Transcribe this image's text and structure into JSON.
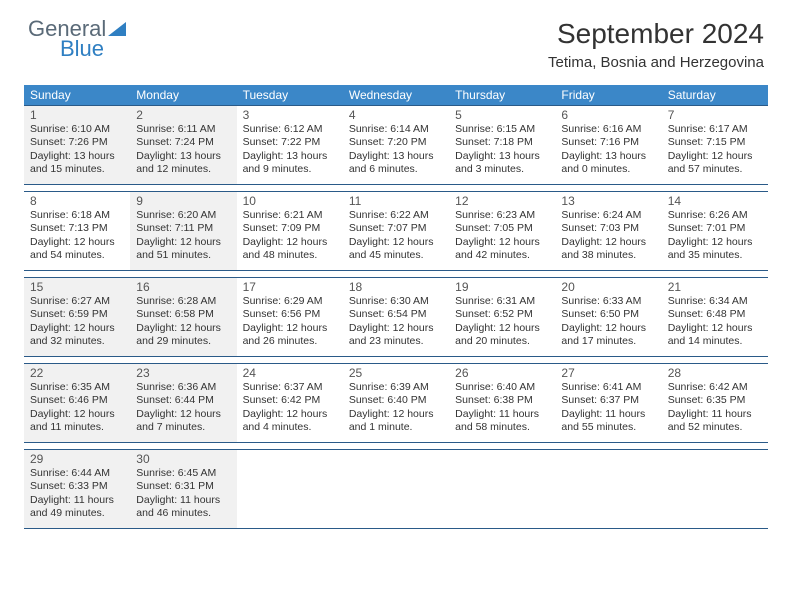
{
  "logo": {
    "text1": "General",
    "text2": "Blue"
  },
  "title": "September 2024",
  "location": "Tetima, Bosnia and Herzegovina",
  "colors": {
    "header_bg": "#3b87c8",
    "border": "#2a5a88",
    "shade": "#f1f1f1",
    "text": "#333333",
    "logo_gray": "#5a6a78",
    "logo_blue": "#2f7fc2"
  },
  "weekdays": [
    "Sunday",
    "Monday",
    "Tuesday",
    "Wednesday",
    "Thursday",
    "Friday",
    "Saturday"
  ],
  "weeks": [
    [
      {
        "n": "1",
        "shaded": true,
        "sr": "Sunrise: 6:10 AM",
        "ss": "Sunset: 7:26 PM",
        "d1": "Daylight: 13 hours",
        "d2": "and 15 minutes."
      },
      {
        "n": "2",
        "shaded": true,
        "sr": "Sunrise: 6:11 AM",
        "ss": "Sunset: 7:24 PM",
        "d1": "Daylight: 13 hours",
        "d2": "and 12 minutes."
      },
      {
        "n": "3",
        "shaded": false,
        "sr": "Sunrise: 6:12 AM",
        "ss": "Sunset: 7:22 PM",
        "d1": "Daylight: 13 hours",
        "d2": "and 9 minutes."
      },
      {
        "n": "4",
        "shaded": false,
        "sr": "Sunrise: 6:14 AM",
        "ss": "Sunset: 7:20 PM",
        "d1": "Daylight: 13 hours",
        "d2": "and 6 minutes."
      },
      {
        "n": "5",
        "shaded": false,
        "sr": "Sunrise: 6:15 AM",
        "ss": "Sunset: 7:18 PM",
        "d1": "Daylight: 13 hours",
        "d2": "and 3 minutes."
      },
      {
        "n": "6",
        "shaded": false,
        "sr": "Sunrise: 6:16 AM",
        "ss": "Sunset: 7:16 PM",
        "d1": "Daylight: 13 hours",
        "d2": "and 0 minutes."
      },
      {
        "n": "7",
        "shaded": false,
        "sr": "Sunrise: 6:17 AM",
        "ss": "Sunset: 7:15 PM",
        "d1": "Daylight: 12 hours",
        "d2": "and 57 minutes."
      }
    ],
    [
      {
        "n": "8",
        "shaded": false,
        "sr": "Sunrise: 6:18 AM",
        "ss": "Sunset: 7:13 PM",
        "d1": "Daylight: 12 hours",
        "d2": "and 54 minutes."
      },
      {
        "n": "9",
        "shaded": true,
        "sr": "Sunrise: 6:20 AM",
        "ss": "Sunset: 7:11 PM",
        "d1": "Daylight: 12 hours",
        "d2": "and 51 minutes."
      },
      {
        "n": "10",
        "shaded": false,
        "sr": "Sunrise: 6:21 AM",
        "ss": "Sunset: 7:09 PM",
        "d1": "Daylight: 12 hours",
        "d2": "and 48 minutes."
      },
      {
        "n": "11",
        "shaded": false,
        "sr": "Sunrise: 6:22 AM",
        "ss": "Sunset: 7:07 PM",
        "d1": "Daylight: 12 hours",
        "d2": "and 45 minutes."
      },
      {
        "n": "12",
        "shaded": false,
        "sr": "Sunrise: 6:23 AM",
        "ss": "Sunset: 7:05 PM",
        "d1": "Daylight: 12 hours",
        "d2": "and 42 minutes."
      },
      {
        "n": "13",
        "shaded": false,
        "sr": "Sunrise: 6:24 AM",
        "ss": "Sunset: 7:03 PM",
        "d1": "Daylight: 12 hours",
        "d2": "and 38 minutes."
      },
      {
        "n": "14",
        "shaded": false,
        "sr": "Sunrise: 6:26 AM",
        "ss": "Sunset: 7:01 PM",
        "d1": "Daylight: 12 hours",
        "d2": "and 35 minutes."
      }
    ],
    [
      {
        "n": "15",
        "shaded": true,
        "sr": "Sunrise: 6:27 AM",
        "ss": "Sunset: 6:59 PM",
        "d1": "Daylight: 12 hours",
        "d2": "and 32 minutes."
      },
      {
        "n": "16",
        "shaded": true,
        "sr": "Sunrise: 6:28 AM",
        "ss": "Sunset: 6:58 PM",
        "d1": "Daylight: 12 hours",
        "d2": "and 29 minutes."
      },
      {
        "n": "17",
        "shaded": false,
        "sr": "Sunrise: 6:29 AM",
        "ss": "Sunset: 6:56 PM",
        "d1": "Daylight: 12 hours",
        "d2": "and 26 minutes."
      },
      {
        "n": "18",
        "shaded": false,
        "sr": "Sunrise: 6:30 AM",
        "ss": "Sunset: 6:54 PM",
        "d1": "Daylight: 12 hours",
        "d2": "and 23 minutes."
      },
      {
        "n": "19",
        "shaded": false,
        "sr": "Sunrise: 6:31 AM",
        "ss": "Sunset: 6:52 PM",
        "d1": "Daylight: 12 hours",
        "d2": "and 20 minutes."
      },
      {
        "n": "20",
        "shaded": false,
        "sr": "Sunrise: 6:33 AM",
        "ss": "Sunset: 6:50 PM",
        "d1": "Daylight: 12 hours",
        "d2": "and 17 minutes."
      },
      {
        "n": "21",
        "shaded": false,
        "sr": "Sunrise: 6:34 AM",
        "ss": "Sunset: 6:48 PM",
        "d1": "Daylight: 12 hours",
        "d2": "and 14 minutes."
      }
    ],
    [
      {
        "n": "22",
        "shaded": true,
        "sr": "Sunrise: 6:35 AM",
        "ss": "Sunset: 6:46 PM",
        "d1": "Daylight: 12 hours",
        "d2": "and 11 minutes."
      },
      {
        "n": "23",
        "shaded": true,
        "sr": "Sunrise: 6:36 AM",
        "ss": "Sunset: 6:44 PM",
        "d1": "Daylight: 12 hours",
        "d2": "and 7 minutes."
      },
      {
        "n": "24",
        "shaded": false,
        "sr": "Sunrise: 6:37 AM",
        "ss": "Sunset: 6:42 PM",
        "d1": "Daylight: 12 hours",
        "d2": "and 4 minutes."
      },
      {
        "n": "25",
        "shaded": false,
        "sr": "Sunrise: 6:39 AM",
        "ss": "Sunset: 6:40 PM",
        "d1": "Daylight: 12 hours",
        "d2": "and 1 minute."
      },
      {
        "n": "26",
        "shaded": false,
        "sr": "Sunrise: 6:40 AM",
        "ss": "Sunset: 6:38 PM",
        "d1": "Daylight: 11 hours",
        "d2": "and 58 minutes."
      },
      {
        "n": "27",
        "shaded": false,
        "sr": "Sunrise: 6:41 AM",
        "ss": "Sunset: 6:37 PM",
        "d1": "Daylight: 11 hours",
        "d2": "and 55 minutes."
      },
      {
        "n": "28",
        "shaded": false,
        "sr": "Sunrise: 6:42 AM",
        "ss": "Sunset: 6:35 PM",
        "d1": "Daylight: 11 hours",
        "d2": "and 52 minutes."
      }
    ],
    [
      {
        "n": "29",
        "shaded": true,
        "sr": "Sunrise: 6:44 AM",
        "ss": "Sunset: 6:33 PM",
        "d1": "Daylight: 11 hours",
        "d2": "and 49 minutes."
      },
      {
        "n": "30",
        "shaded": true,
        "sr": "Sunrise: 6:45 AM",
        "ss": "Sunset: 6:31 PM",
        "d1": "Daylight: 11 hours",
        "d2": "and 46 minutes."
      },
      null,
      null,
      null,
      null,
      null
    ]
  ]
}
